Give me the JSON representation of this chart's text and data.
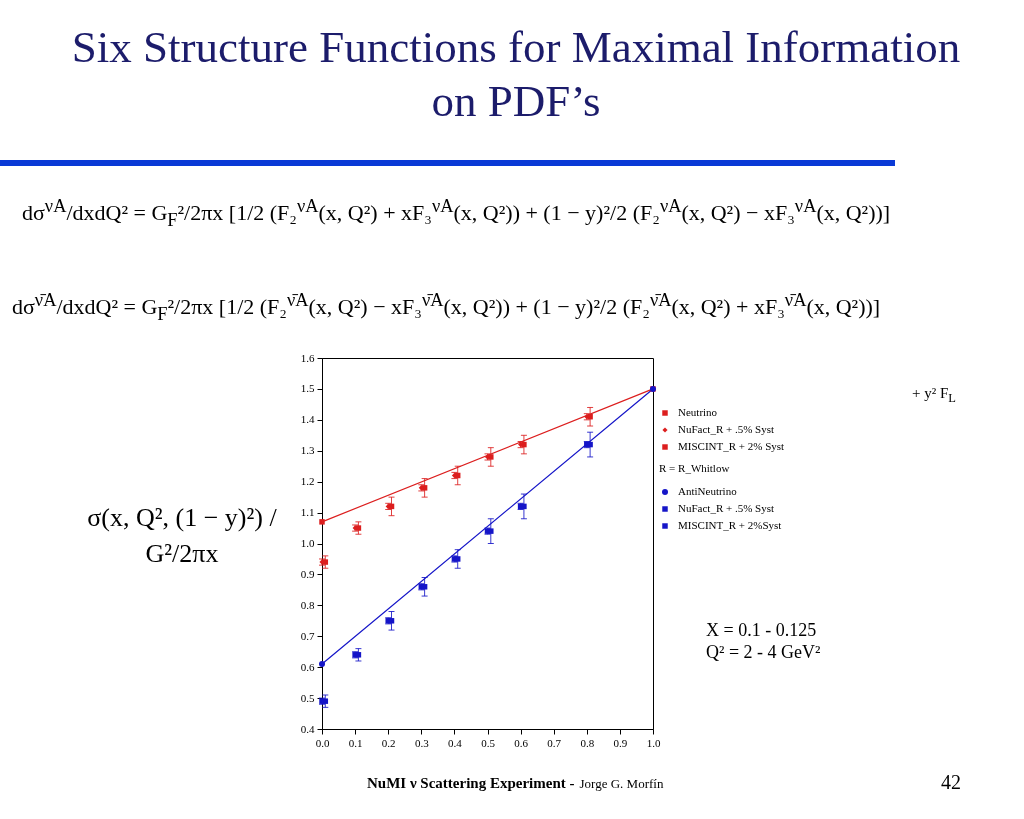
{
  "chart_data": {
    "type": "scatter",
    "title": "Six Structure Functions for Maximal Information on PDF’s",
    "ylabel": "σ(x, Q², (1 − y)²) / G²/2πx",
    "xlim": [
      0,
      1
    ],
    "xticks": [
      {
        "value": 0,
        "label": "0.0"
      },
      0.1,
      0.2,
      0.3,
      0.4,
      0.5,
      0.6,
      0.7,
      0.8,
      0.9,
      {
        "value": 1,
        "label": "1.0"
      }
    ],
    "ylim": [
      0.4,
      1.6
    ],
    "yticks": [
      0.4,
      0.5,
      0.6,
      0.7,
      0.8,
      0.9,
      {
        "value": 1,
        "label": "1.0"
      },
      1.1,
      1.2,
      1.3,
      1.4,
      1.5,
      1.6
    ],
    "legend": "right",
    "series": [
      {
        "name": "Neutrino",
        "type": "line",
        "color": "#dc1e1e",
        "marker": "square",
        "x": [
          0,
          1
        ],
        "values": [
          1.07,
          1.5
        ]
      },
      {
        "name": "NuFact_R + .5% Syst",
        "type": "scatter",
        "color": "#dc1e1e",
        "marker": "diamond",
        "x": [
          0,
          0.1,
          0.2,
          0.3,
          0.4,
          0.5,
          0.6,
          0.8
        ],
        "values": [
          0.94,
          1.05,
          1.12,
          1.18,
          1.22,
          1.28,
          1.32,
          1.41
        ],
        "errors": [
          0.01,
          0.01,
          0.01,
          0.01,
          0.01,
          0.01,
          0.01,
          0.01
        ]
      },
      {
        "name": "MISCINT_R + 2% Syst",
        "type": "scatter",
        "color": "#dc1e1e",
        "marker": "square",
        "x": [
          0.01,
          0.11,
          0.21,
          0.31,
          0.41,
          0.51,
          0.61,
          0.81
        ],
        "values": [
          0.94,
          1.05,
          1.12,
          1.18,
          1.22,
          1.28,
          1.32,
          1.41
        ],
        "errors": [
          0.02,
          0.02,
          0.03,
          0.03,
          0.03,
          0.03,
          0.03,
          0.03
        ]
      },
      {
        "name": "AntiNeutrino",
        "type": "line",
        "color": "#1515c8",
        "marker": "circle",
        "x": [
          0,
          1
        ],
        "values": [
          0.61,
          1.5
        ]
      },
      {
        "name": "NuFact_R + .5% Syst",
        "type": "scatter",
        "color": "#1515c8",
        "marker": "square",
        "x": [
          0,
          0.1,
          0.2,
          0.3,
          0.4,
          0.5,
          0.6,
          0.8
        ],
        "values": [
          0.49,
          0.64,
          0.75,
          0.86,
          0.95,
          1.04,
          1.12,
          1.32
        ],
        "errors": [
          0.01,
          0.01,
          0.01,
          0.01,
          0.01,
          0.01,
          0.01,
          0.01
        ]
      },
      {
        "name": "MISCINT_R + 2%Syst",
        "type": "scatter",
        "color": "#1515c8",
        "marker": "square",
        "x": [
          0.01,
          0.11,
          0.21,
          0.31,
          0.41,
          0.51,
          0.61,
          0.81
        ],
        "values": [
          0.49,
          0.64,
          0.75,
          0.86,
          0.95,
          1.04,
          1.12,
          1.32
        ],
        "errors": [
          0.02,
          0.02,
          0.03,
          0.03,
          0.03,
          0.04,
          0.04,
          0.04
        ]
      }
    ],
    "annotations": [
      "dσ$^{νA}$/dxdQ² = G$_{F}$²/2πx [1/2 (F₂$^{νA}$(x, Q²) + xF₃$^{νA}$(x, Q²)) + (1 − y)²/2 (F₂$^{νA}$(x, Q²) − xF₃$^{νA}$(x, Q²))]",
      "dσ$^{ν̄A}$/dxdQ² = G$_{F}$²/2πx [1/2 (F₂$^{ν̄A}$(x, Q²) − xF₃$^{ν̄A}$(x, Q²)) + (1 − y)²/2 (F₂$^{ν̄A}$(x, Q²) + xF₃$^{ν̄A}$(x, Q²))]",
      "+ y² F$_{L}$",
      "R = R_Whitlow",
      "X = 0.1 - 0.125",
      "Q² = 2 - 4 GeV²",
      "NuMI ν Scattering Experiment -",
      "Jorge G. Morfín",
      "42"
    ]
  }
}
